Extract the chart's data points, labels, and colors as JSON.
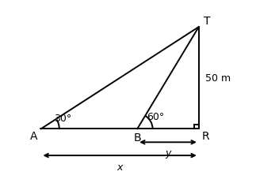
{
  "A": [
    0.05,
    0.42
  ],
  "B": [
    0.52,
    0.42
  ],
  "R": [
    0.82,
    0.42
  ],
  "T": [
    0.82,
    0.92
  ],
  "angle_A_label": "30°",
  "angle_B_label": "60°",
  "label_T": "T",
  "label_A": "A",
  "label_B": "B",
  "label_R": "R",
  "side_label": "50 m",
  "x_label": "x",
  "y_label": "y",
  "bg_color": "#ffffff",
  "line_color": "#000000",
  "font_size": 10,
  "small_font": 9,
  "arrow_color": "#000000"
}
